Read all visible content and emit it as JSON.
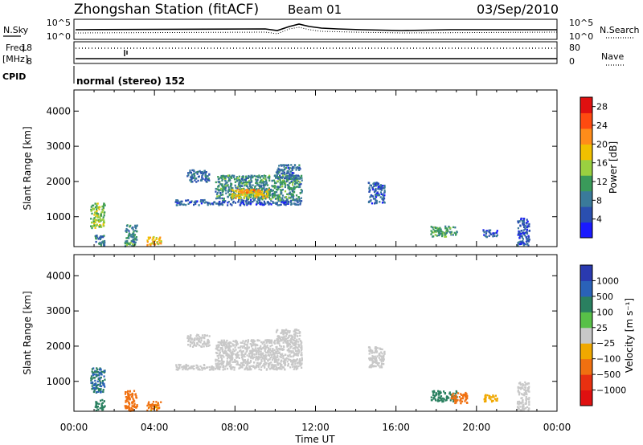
{
  "header": {
    "station": "Zhongshan Station (fitACF)",
    "beam": "Beam 01",
    "date": "03/Sep/2010"
  },
  "top_panels": {
    "nsky_label": "N.Sky",
    "nsearch_label": "N.Search",
    "noise_ticks_left": [
      "10^5",
      "10^0"
    ],
    "noise_ticks_right": [
      "10^5",
      "10^0"
    ],
    "freq_label_1": "Freq.",
    "freq_label_2": "[MHz]",
    "freq_ticks": [
      "18",
      "8"
    ],
    "nave_label": "Nave",
    "nave_ticks": [
      "80",
      "0"
    ],
    "cpid_label": "CPID",
    "cpid_text": "normal (stereo) 152"
  },
  "colors": {
    "power_scale": [
      "#1a1aff",
      "#2a4fb0",
      "#3a7a9a",
      "#3a9a5a",
      "#9ad040",
      "#f0c000",
      "#ff8c1a",
      "#ff4a10",
      "#e01010"
    ],
    "velocity_scale": [
      "#2a3ab0",
      "#2a62b8",
      "#2a8060",
      "#58c048",
      "#c8c8c8",
      "#f0a800",
      "#f07010",
      "#e83010",
      "#e01010"
    ],
    "ground_scatter": "#bdbdbd"
  },
  "chart_data": [
    {
      "type": "heatmap",
      "title": "Power",
      "xlabel": "Time UT",
      "ylabel": "Slant Range [km]",
      "x_ticks": [
        "00:00",
        "04:00",
        "08:00",
        "12:00",
        "16:00",
        "20:00",
        "00:00"
      ],
      "y_ticks": [
        "1000",
        "2000",
        "3000",
        "4000"
      ],
      "ylim": [
        150,
        4600
      ],
      "colorbar": {
        "label": "Power [dB]",
        "ticks": [
          "4",
          "8",
          "12",
          "16",
          "20",
          "24",
          "28"
        ],
        "range": [
          0,
          30
        ]
      },
      "regions": [
        {
          "t0": 0.8,
          "t1": 1.5,
          "r0": 700,
          "r1": 1400,
          "value": 14
        },
        {
          "t0": 1.0,
          "t1": 1.5,
          "r0": 200,
          "r1": 500,
          "value": 9
        },
        {
          "t0": 2.5,
          "t1": 3.1,
          "r0": 180,
          "r1": 800,
          "value": 10
        },
        {
          "t0": 3.6,
          "t1": 4.3,
          "r0": 200,
          "r1": 450,
          "value": 19
        },
        {
          "t0": 5.0,
          "t1": 11.3,
          "r0": 1350,
          "r1": 1500,
          "value": 6
        },
        {
          "t0": 5.6,
          "t1": 6.7,
          "r0": 2000,
          "r1": 2350,
          "value": 7
        },
        {
          "t0": 7.0,
          "t1": 11.3,
          "r0": 1500,
          "r1": 2200,
          "value": 10
        },
        {
          "t0": 7.8,
          "t1": 9.7,
          "r0": 1550,
          "r1": 1800,
          "value": 18
        },
        {
          "t0": 8.0,
          "t1": 9.0,
          "r0": 1700,
          "r1": 1800,
          "value": 21
        },
        {
          "t0": 10.0,
          "t1": 11.2,
          "r0": 2100,
          "r1": 2500,
          "value": 7
        },
        {
          "t0": 14.6,
          "t1": 15.4,
          "r0": 1400,
          "r1": 2000,
          "value": 6
        },
        {
          "t0": 17.7,
          "t1": 19.0,
          "r0": 450,
          "r1": 750,
          "value": 11
        },
        {
          "t0": 20.3,
          "t1": 21.0,
          "r0": 450,
          "r1": 650,
          "value": 6
        },
        {
          "t0": 22.0,
          "t1": 22.6,
          "r0": 200,
          "r1": 1000,
          "value": 5
        }
      ]
    },
    {
      "type": "heatmap",
      "title": "Velocity",
      "xlabel": "Time UT",
      "ylabel": "Slant Range [km]",
      "x_ticks": [
        "00:00",
        "04:00",
        "08:00",
        "12:00",
        "16:00",
        "20:00",
        "00:00"
      ],
      "y_ticks": [
        "1000",
        "2000",
        "3000",
        "4000"
      ],
      "ylim": [
        150,
        4600
      ],
      "colorbar": {
        "label": "Velocity [m s⁻¹]",
        "ticks": [
          "1000",
          "500",
          "100",
          "25",
          "−25",
          "−100",
          "−500",
          "−1000"
        ],
        "range": [
          -1200,
          1200
        ]
      },
      "regions": [
        {
          "t0": 0.8,
          "t1": 1.5,
          "r0": 700,
          "r1": 1400,
          "value": 300
        },
        {
          "t0": 1.0,
          "t1": 1.5,
          "r0": 200,
          "r1": 500,
          "value": 150
        },
        {
          "t0": 2.5,
          "t1": 3.1,
          "r0": 180,
          "r1": 800,
          "value": -200
        },
        {
          "t0": 3.6,
          "t1": 4.3,
          "r0": 200,
          "r1": 450,
          "value": -150
        },
        {
          "t0": 5.0,
          "t1": 11.3,
          "r0": 1350,
          "r1": 1500,
          "value": 0
        },
        {
          "t0": 5.6,
          "t1": 6.7,
          "r0": 2000,
          "r1": 2350,
          "value": 0
        },
        {
          "t0": 7.0,
          "t1": 11.3,
          "r0": 1500,
          "r1": 2200,
          "value": 0
        },
        {
          "t0": 10.0,
          "t1": 11.2,
          "r0": 2100,
          "r1": 2500,
          "value": 0
        },
        {
          "t0": 14.6,
          "t1": 15.4,
          "r0": 1400,
          "r1": 2000,
          "value": 0
        },
        {
          "t0": 17.7,
          "t1": 19.0,
          "r0": 450,
          "r1": 750,
          "value": 120
        },
        {
          "t0": 18.7,
          "t1": 19.5,
          "r0": 400,
          "r1": 700,
          "value": -200
        },
        {
          "t0": 20.3,
          "t1": 21.0,
          "r0": 450,
          "r1": 650,
          "value": -60
        },
        {
          "t0": 22.0,
          "t1": 22.6,
          "r0": 200,
          "r1": 1000,
          "value": 0
        }
      ]
    }
  ]
}
